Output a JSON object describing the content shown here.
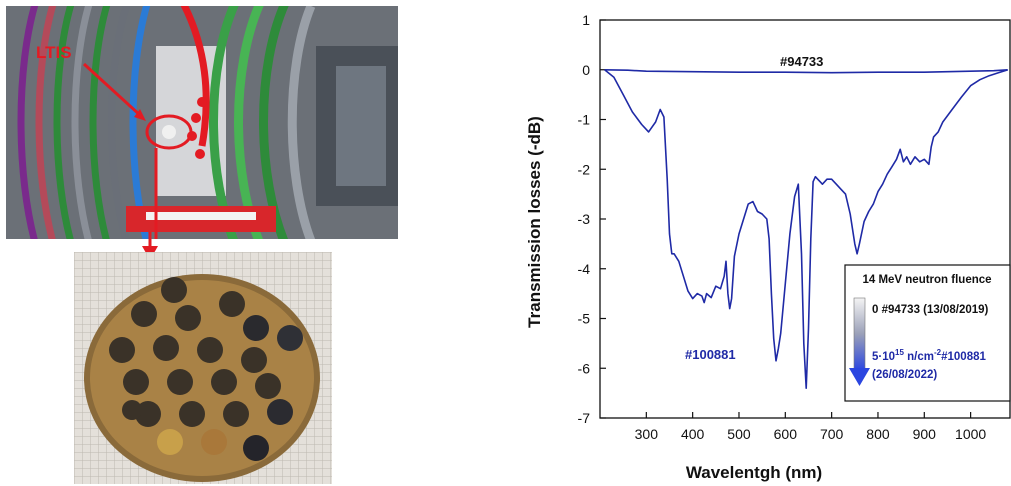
{
  "figure": {
    "cad_label": "LTIS"
  },
  "chart_data": {
    "type": "line",
    "xlabel": "Wavelentgh (nm)",
    "ylabel": "Transmission losses (-dB)",
    "xlim": [
      200,
      1085
    ],
    "ylim": [
      -7,
      1
    ],
    "xticks": [
      300,
      400,
      500,
      600,
      700,
      800,
      900,
      1000
    ],
    "yticks": [
      1,
      0,
      -1,
      -2,
      -3,
      -4,
      -5,
      -6,
      -7
    ],
    "grid": false,
    "color": "#1f2aa6",
    "series": [
      {
        "name": "#94733",
        "x": [
          210,
          260,
          300,
          400,
          500,
          600,
          700,
          800,
          900,
          1000,
          1050,
          1080
        ],
        "y": [
          0,
          -0.01,
          -0.03,
          -0.04,
          -0.05,
          -0.05,
          -0.06,
          -0.05,
          -0.05,
          -0.03,
          -0.02,
          0
        ]
      },
      {
        "name": "#100881",
        "x": [
          210,
          230,
          250,
          270,
          290,
          305,
          320,
          330,
          338,
          345,
          350,
          355,
          360,
          370,
          380,
          390,
          400,
          410,
          420,
          425,
          430,
          440,
          450,
          460,
          468,
          472,
          476,
          480,
          484,
          490,
          500,
          510,
          520,
          530,
          540,
          550,
          560,
          565,
          570,
          575,
          580,
          585,
          590,
          600,
          610,
          620,
          628,
          635,
          640,
          645,
          650,
          655,
          660,
          665,
          670,
          675,
          680,
          690,
          700,
          710,
          720,
          730,
          740,
          750,
          755,
          760,
          770,
          780,
          790,
          800,
          810,
          820,
          830,
          840,
          848,
          855,
          862,
          870,
          880,
          890,
          900,
          910,
          915,
          920,
          930,
          940,
          960,
          980,
          1000,
          1020,
          1040,
          1060,
          1080
        ],
        "y": [
          0,
          -0.15,
          -0.5,
          -0.85,
          -1.1,
          -1.25,
          -1.05,
          -0.8,
          -0.95,
          -2.2,
          -3.3,
          -3.7,
          -3.7,
          -3.85,
          -4.15,
          -4.45,
          -4.6,
          -4.5,
          -4.55,
          -4.68,
          -4.5,
          -4.58,
          -4.35,
          -4.4,
          -4.15,
          -3.85,
          -4.5,
          -4.8,
          -4.6,
          -3.75,
          -3.3,
          -3.0,
          -2.7,
          -2.65,
          -2.85,
          -2.9,
          -3.0,
          -3.4,
          -4.5,
          -5.4,
          -5.85,
          -5.6,
          -5.3,
          -4.3,
          -3.3,
          -2.55,
          -2.3,
          -3.7,
          -5.5,
          -6.4,
          -5.2,
          -3.4,
          -2.25,
          -2.15,
          -2.2,
          -2.25,
          -2.3,
          -2.2,
          -2.2,
          -2.3,
          -2.4,
          -2.5,
          -2.9,
          -3.5,
          -3.7,
          -3.5,
          -3.05,
          -2.85,
          -2.7,
          -2.45,
          -2.3,
          -2.1,
          -1.95,
          -1.8,
          -1.6,
          -1.85,
          -1.75,
          -1.9,
          -1.75,
          -1.85,
          -1.8,
          -1.9,
          -1.55,
          -1.35,
          -1.25,
          -1.05,
          -0.8,
          -0.55,
          -0.32,
          -0.2,
          -0.12,
          -0.06,
          0
        ]
      }
    ],
    "annotations": {
      "top_label": "#94733",
      "bottom_label": "#100881"
    },
    "legend": {
      "title": "14 MeV neutron fluence",
      "entry_top": "0 #94733 (13/08/2019)",
      "entry_bottom_base": "5·10",
      "entry_bottom_exp": "15",
      "entry_bottom_unit": " n/cm",
      "entry_bottom_unit_exp": "-2",
      "entry_bottom_id": "#100881",
      "entry_bottom_date": "(26/08/2022)",
      "placement": "bottom-right"
    }
  }
}
